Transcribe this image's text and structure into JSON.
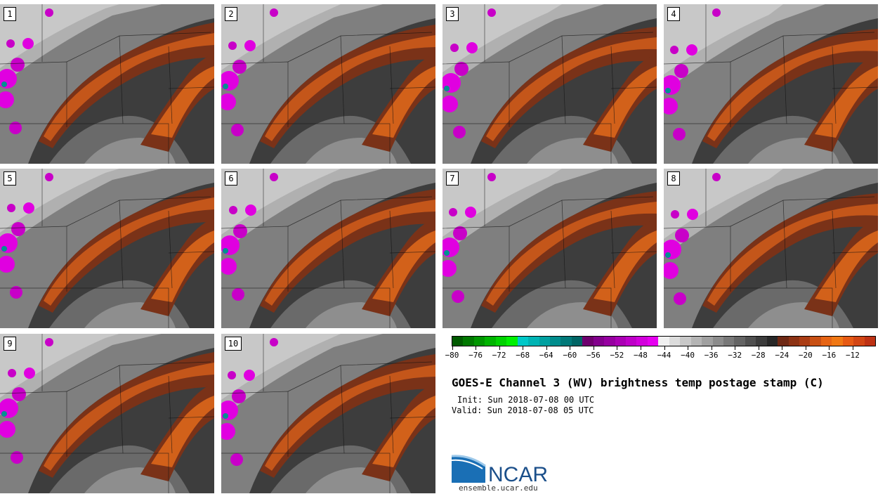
{
  "panels": [
    {
      "label": "1"
    },
    {
      "label": "2"
    },
    {
      "label": "3"
    },
    {
      "label": "4"
    },
    {
      "label": "5"
    },
    {
      "label": "6"
    },
    {
      "label": "7"
    },
    {
      "label": "8"
    },
    {
      "label": "9"
    },
    {
      "label": "10"
    }
  ],
  "colorbar": {
    "colors": [
      "#005a00",
      "#007800",
      "#009600",
      "#00b400",
      "#00d200",
      "#00f000",
      "#00c8c8",
      "#00b4b4",
      "#00a0a0",
      "#008c8c",
      "#007878",
      "#006464",
      "#6e006e",
      "#82008c",
      "#9600a0",
      "#aa00b4",
      "#be00c8",
      "#d200dc",
      "#e600f0",
      "#f0f0f0",
      "#dcdcdc",
      "#c8c8c8",
      "#b4b4b4",
      "#a0a0a0",
      "#8c8c8c",
      "#787878",
      "#646464",
      "#505050",
      "#3c3c3c",
      "#282828",
      "#6e2814",
      "#8c3214",
      "#aa3c14",
      "#c85014",
      "#e66414",
      "#f07814",
      "#e65a14",
      "#d24614",
      "#be3214"
    ],
    "ticks": [
      "−80",
      "−76",
      "−72",
      "−68",
      "−64",
      "−60",
      "−56",
      "−52",
      "−48",
      "−44",
      "−40",
      "−36",
      "−32",
      "−28",
      "−24",
      "−20",
      "−16",
      "−12"
    ]
  },
  "title": "GOES-E Channel 3 (WV) brightness temp postage stamp (C)",
  "init": "Init: Sun 2018-07-08 00 UTC",
  "valid": "Valid: Sun 2018-07-08 05 UTC",
  "logo": {
    "name": "NCAR",
    "url": "ensemble.ucar.edu"
  }
}
